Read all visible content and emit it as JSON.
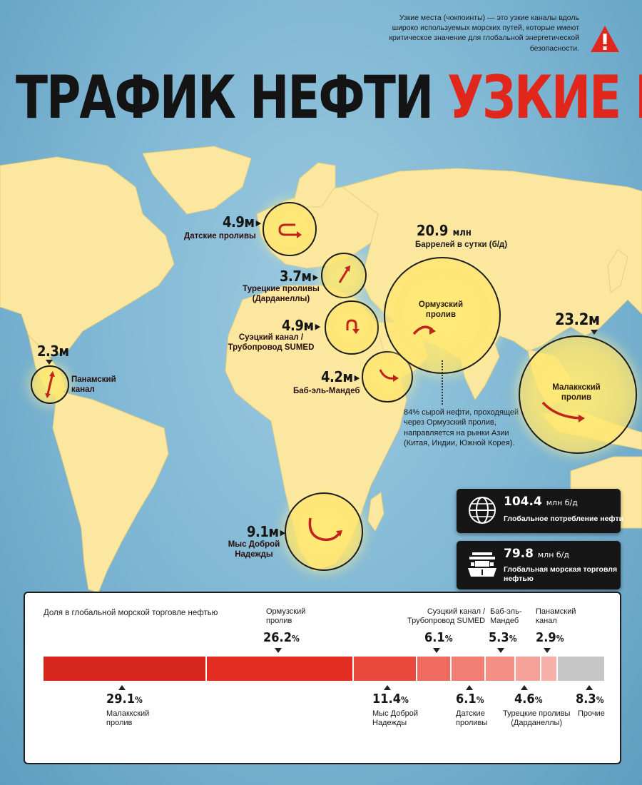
{
  "header": {
    "title_black": "ТРАФИК НЕФТИ",
    "title_red": "УЗКИЕ МЕСТА",
    "note": "Узкие места (чокпоинты) — это узкие каналы вдоль широко используемых морских путей, которые имеют критическое значение для глобальной энергетической безопасности.",
    "warning_icon": "warning-triangle-icon"
  },
  "colors": {
    "accent_red": "#e1261c",
    "land": "#fbe7a0",
    "ocean": "#7bb6d4",
    "bubble": "#ffe46a",
    "dark_box": "#161616",
    "bar_gray": "#c6c6c6"
  },
  "chokepoints": {
    "danish": {
      "value": "4.9м",
      "label": "Датские проливы"
    },
    "turkish": {
      "value": "3.7м",
      "label_1": "Турецкие проливы",
      "label_2": "(Дарданеллы)"
    },
    "suez": {
      "value": "4.9м",
      "label_1": "Суэцкий канал /",
      "label_2": "Трубопровод SUMED"
    },
    "bab": {
      "value": "4.2м",
      "label": "Баб-эль-Мандеб"
    },
    "hormuz": {
      "value": "20.9",
      "unit": "млн",
      "sub": "Баррелей в сутки (б/д)",
      "inner_1": "Ормузский",
      "inner_2": "пролив"
    },
    "malacca": {
      "value": "23.2м",
      "inner_1": "Малаккский",
      "inner_2": "пролив"
    },
    "panama": {
      "value": "2.3м",
      "label_1": "Панамский",
      "label_2": "канал"
    },
    "cape": {
      "value": "9.1м",
      "label_1": "Мыс Доброй",
      "label_2": "Надежды"
    }
  },
  "callout": "84% сырой нефти, проходящей через Ормузский пролив, направляется на рынки Азии (Китая, Индии, Южной Корея).",
  "stats": [
    {
      "value": "104.4",
      "unit": "млн б/д",
      "caption_1": "Глобальное потребление нефти",
      "caption_2": "",
      "icon": "globe-icon"
    },
    {
      "value": "79.8",
      "unit": "млн б/д",
      "caption_1": "Глобальная морская торговля",
      "caption_2": "нефтью",
      "icon": "tanker-ship-icon"
    }
  ],
  "share": {
    "title": "Доля в глобальной морской торговле нефтью",
    "segments": [
      {
        "name": "Малаккский пролив",
        "percent": 29.1,
        "color": "#d7261e"
      },
      {
        "name": "Ормузский пролив",
        "percent": 26.2,
        "color": "#e32c22"
      },
      {
        "name": "Мыс Доброй Надежды",
        "percent": 11.4,
        "color": "#ea4a3e"
      },
      {
        "name": "Суэцкий канал / Трубопровод SUMED",
        "percent": 6.1,
        "color": "#ef6a5f"
      },
      {
        "name": "Датские проливы",
        "percent": 6.1,
        "color": "#f27d73"
      },
      {
        "name": "Баб-эль-Мандеб",
        "percent": 5.3,
        "color": "#f48f86"
      },
      {
        "name": "Турецкие проливы (Дарданеллы)",
        "percent": 4.6,
        "color": "#f5a199"
      },
      {
        "name": "Панамский канал",
        "percent": 2.9,
        "color": "#f7b1aa"
      },
      {
        "name": "Прочие",
        "percent": 8.3,
        "color": "#c6c6c6"
      }
    ],
    "labels": {
      "malacca_pct": "29.1",
      "malacca_1": "Малаккский",
      "malacca_2": "пролив",
      "hormuz_pct": "26.2",
      "hormuz_1": "Ормузский",
      "hormuz_2": "пролив",
      "cape_pct": "11.4",
      "cape_1": "Мыс Доброй",
      "cape_2": "Надежды",
      "suez_pct": "6.1",
      "suez_1": "Суэцкий канал /",
      "suez_2": "Трубопровод SUMED",
      "danish_pct": "6.1",
      "danish_1": "Датские",
      "danish_2": "проливы",
      "bab_pct": "5.3",
      "bab_1": "Баб-эль-",
      "bab_2": "Мандеб",
      "turkish_pct": "4.6",
      "turkish_1": "Турецкие проливы",
      "turkish_2": "(Дарданеллы)",
      "panama_pct": "2.9",
      "panama_1": "Панамский",
      "panama_2": "канал",
      "other_pct": "8.3",
      "other_1": "Прочие",
      "pct_sign": "%"
    }
  }
}
